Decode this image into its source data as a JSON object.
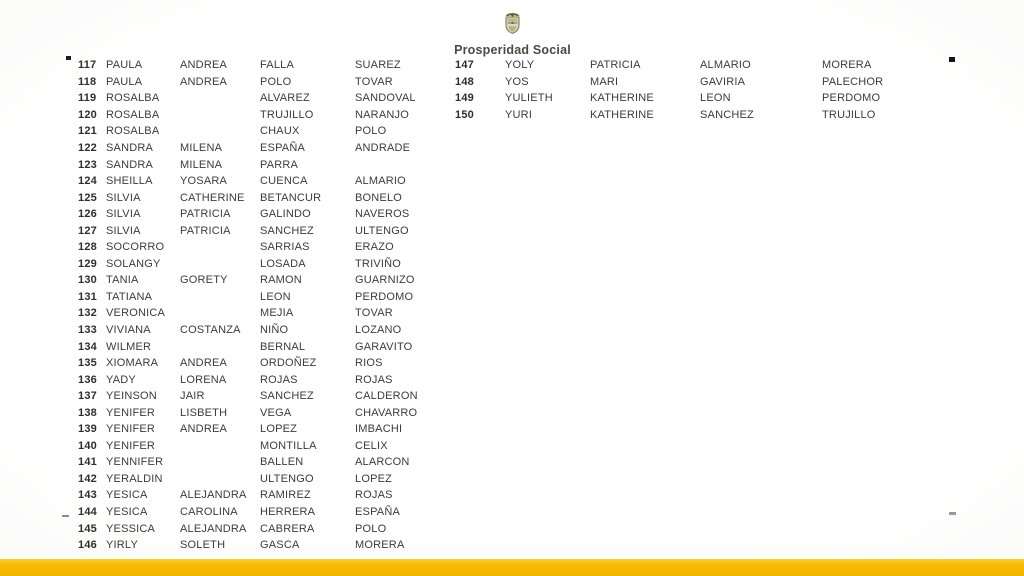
{
  "page": {
    "kind": "scanned-beneficiary-list-slide",
    "background_color": "#FFFFFF",
    "accent_bar_color": "#F7BC00",
    "text_color": "#3B3B3B"
  },
  "header": {
    "logo_icon": "colombia-coat-of-arms-icon",
    "title": "Prosperidad Social"
  },
  "tables": {
    "left": {
      "rows": [
        [
          "117",
          "PAULA",
          "ANDREA",
          "FALLA",
          "SUAREZ"
        ],
        [
          "118",
          "PAULA",
          "ANDREA",
          "POLO",
          "TOVAR"
        ],
        [
          "119",
          "ROSALBA",
          "",
          "ALVAREZ",
          "SANDOVAL"
        ],
        [
          "120",
          "ROSALBA",
          "",
          "TRUJILLO",
          "NARANJO"
        ],
        [
          "121",
          "ROSALBA",
          "",
          "CHAUX",
          "POLO"
        ],
        [
          "122",
          "SANDRA",
          "MILENA",
          "ESPAÑA",
          "ANDRADE"
        ],
        [
          "123",
          "SANDRA",
          "MILENA",
          "PARRA",
          ""
        ],
        [
          "124",
          "SHEILLA",
          "YOSARA",
          "CUENCA",
          "ALMARIO"
        ],
        [
          "125",
          "SILVIA",
          "CATHERINE",
          "BETANCUR",
          "BONELO"
        ],
        [
          "126",
          "SILVIA",
          "PATRICIA",
          "GALINDO",
          "NAVEROS"
        ],
        [
          "127",
          "SILVIA",
          "PATRICIA",
          "SANCHEZ",
          "ULTENGO"
        ],
        [
          "128",
          "SOCORRO",
          "",
          "SARRIAS",
          "ERAZO"
        ],
        [
          "129",
          "SOLANGY",
          "",
          "LOSADA",
          "TRIVIÑO"
        ],
        [
          "130",
          "TANIA",
          "GORETY",
          "RAMON",
          "GUARNIZO"
        ],
        [
          "131",
          "TATIANA",
          "",
          "LEON",
          "PERDOMO"
        ],
        [
          "132",
          "VERONICA",
          "",
          "MEJIA",
          "TOVAR"
        ],
        [
          "133",
          "VIVIANA",
          "COSTANZA",
          "NIÑO",
          "LOZANO"
        ],
        [
          "134",
          "WILMER",
          "",
          "BERNAL",
          "GARAVITO"
        ],
        [
          "135",
          "XIOMARA",
          "ANDREA",
          "ORDOÑEZ",
          "RIOS"
        ],
        [
          "136",
          "YADY",
          "LORENA",
          "ROJAS",
          "ROJAS"
        ],
        [
          "137",
          "YEINSON",
          "JAIR",
          "SANCHEZ",
          "CALDERON"
        ],
        [
          "138",
          "YENIFER",
          "LISBETH",
          "VEGA",
          "CHAVARRO"
        ],
        [
          "139",
          "YENIFER",
          "ANDREA",
          "LOPEZ",
          "IMBACHI"
        ],
        [
          "140",
          "YENIFER",
          "",
          "MONTILLA",
          "CELIX"
        ],
        [
          "141",
          "YENNIFER",
          "",
          "BALLEN",
          "ALARCON"
        ],
        [
          "142",
          "YERALDIN",
          "",
          "ULTENGO",
          "LOPEZ"
        ],
        [
          "143",
          "YESICA",
          "ALEJANDRA",
          "RAMIREZ",
          "ROJAS"
        ],
        [
          "144",
          "YESICA",
          "CAROLINA",
          "HERRERA",
          "ESPAÑA"
        ],
        [
          "145",
          "YESSICA",
          "ALEJANDRA",
          "CABRERA",
          "POLO"
        ],
        [
          "146",
          "YIRLY",
          "SOLETH",
          "GASCA",
          "MORERA"
        ]
      ]
    },
    "right": {
      "rows": [
        [
          "147",
          "YOLY",
          "PATRICIA",
          "ALMARIO",
          "MORERA"
        ],
        [
          "148",
          "YOS",
          "MARI",
          "GAVIRIA",
          "PALECHOR"
        ],
        [
          "149",
          "YULIETH",
          "KATHERINE",
          "LEON",
          "PERDOMO"
        ],
        [
          "150",
          "YURI",
          "KATHERINE",
          "SANCHEZ",
          "TRUJILLO"
        ]
      ]
    }
  }
}
